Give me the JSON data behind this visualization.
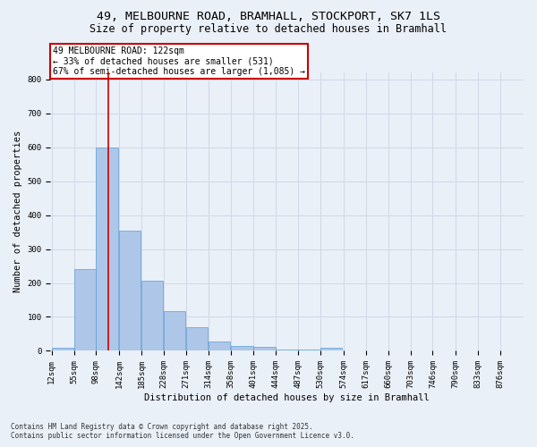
{
  "title_line1": "49, MELBOURNE ROAD, BRAMHALL, STOCKPORT, SK7 1LS",
  "title_line2": "Size of property relative to detached houses in Bramhall",
  "xlabel": "Distribution of detached houses by size in Bramhall",
  "ylabel": "Number of detached properties",
  "bins": [
    12,
    55,
    98,
    142,
    185,
    228,
    271,
    314,
    358,
    401,
    444,
    487,
    530,
    574,
    617,
    660,
    703,
    746,
    790,
    833,
    876
  ],
  "values": [
    8,
    240,
    600,
    355,
    207,
    117,
    70,
    28,
    15,
    12,
    5,
    5,
    8,
    0,
    0,
    0,
    0,
    0,
    0,
    0,
    0
  ],
  "bar_color": "#aec6e8",
  "bar_edge_color": "#5a9fd4",
  "grid_color": "#d0d8e8",
  "background_color": "#eaf0f8",
  "property_sqm": 122,
  "property_line_color": "#cc0000",
  "annotation_line1": "49 MELBOURNE ROAD: 122sqm",
  "annotation_line2": "← 33% of detached houses are smaller (531)",
  "annotation_line3": "67% of semi-detached houses are larger (1,085) →",
  "annotation_box_color": "#ffffff",
  "annotation_box_edge": "#cc0000",
  "yticks": [
    0,
    100,
    200,
    300,
    400,
    500,
    600,
    700,
    800
  ],
  "ylim": [
    0,
    820
  ],
  "bin_width": 43,
  "footer_line1": "Contains HM Land Registry data © Crown copyright and database right 2025.",
  "footer_line2": "Contains public sector information licensed under the Open Government Licence v3.0.",
  "title_fontsize": 9.5,
  "subtitle_fontsize": 8.5,
  "axis_label_fontsize": 7.5,
  "tick_fontsize": 6.5,
  "annotation_fontsize": 7,
  "footer_fontsize": 5.5
}
